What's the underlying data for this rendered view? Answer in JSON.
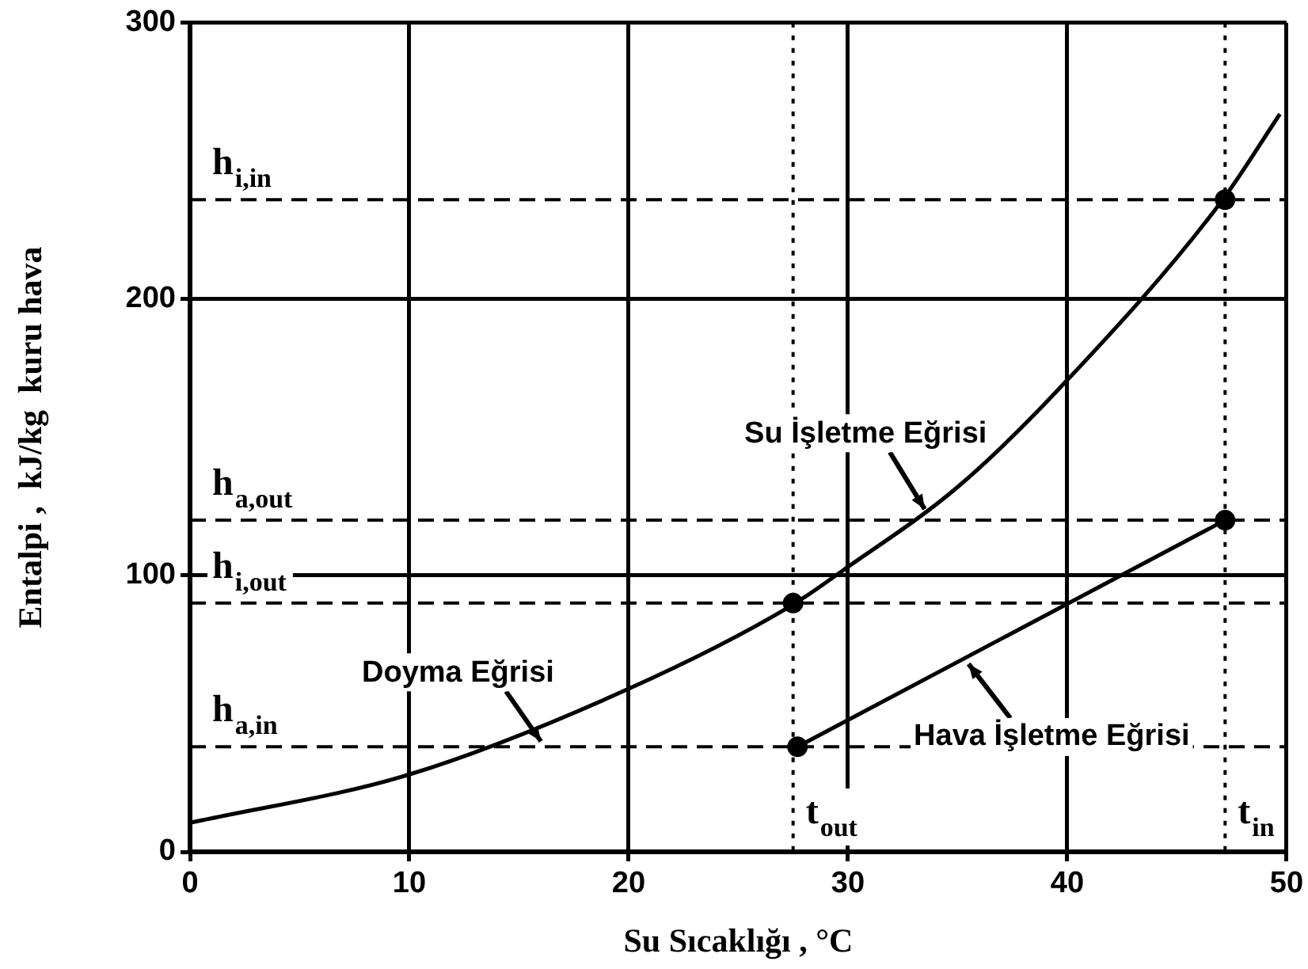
{
  "chart_data": {
    "type": "line",
    "xlabel": "Su Sıcaklığı , °C",
    "ylabel": "Entalpi ,  kJ/kg  kuru hava",
    "xlim": [
      0,
      50
    ],
    "xticks": [
      0,
      10,
      20,
      30,
      40,
      50
    ],
    "ylim": [
      0,
      300
    ],
    "yticks": [
      0,
      100,
      200,
      300
    ],
    "grid": true,
    "legend": false,
    "marker": "none",
    "line_style": "solid",
    "series": [
      {
        "color": "#000000",
        "x": [
          0,
          10,
          20,
          27.4,
          29.8,
          35,
          39.8,
          47,
          49.7
        ],
        "values": [
          10.5,
          28,
          59,
          89,
          102,
          132,
          169,
          235,
          267
        ]
      },
      {
        "color": "#000000",
        "x": [
          27.7,
          47.2
        ],
        "values": [
          38,
          120
        ]
      },
      {
        "type": "scatter",
        "marker": "circle",
        "color": "#000000",
        "x": [
          27.5,
          47.2,
          27.7,
          47.2
        ],
        "values": [
          90,
          236,
          38,
          120
        ]
      }
    ],
    "ref_lines": [
      {
        "axis": "y",
        "value": 236,
        "label": "h$_{i,in}$",
        "line_style": "dashed"
      },
      {
        "axis": "y",
        "value": 120,
        "label": "h$_{a,out}$",
        "line_style": "dashed"
      },
      {
        "axis": "y",
        "value": 90,
        "label": "h$_{i,out}$",
        "line_style": "dashed"
      },
      {
        "axis": "y",
        "value": 38,
        "label": "h$_{a,in}$",
        "line_style": "dashed"
      },
      {
        "axis": "x",
        "value": 27.5,
        "label": "t$_{out}$",
        "line_style": "dotted"
      },
      {
        "axis": "x",
        "value": 47.2,
        "label": "t$_{in}$",
        "line_style": "dotted"
      }
    ],
    "annotations": [
      {
        "text": "Su İşletme Eğrisi",
        "x": 33.5,
        "y": 124
      },
      {
        "text": "Doyma Eğrisi",
        "x": 16,
        "y": 40
      },
      {
        "text": "Hava İşletme Eğrisi",
        "x": 35.5,
        "y": 68
      }
    ]
  }
}
